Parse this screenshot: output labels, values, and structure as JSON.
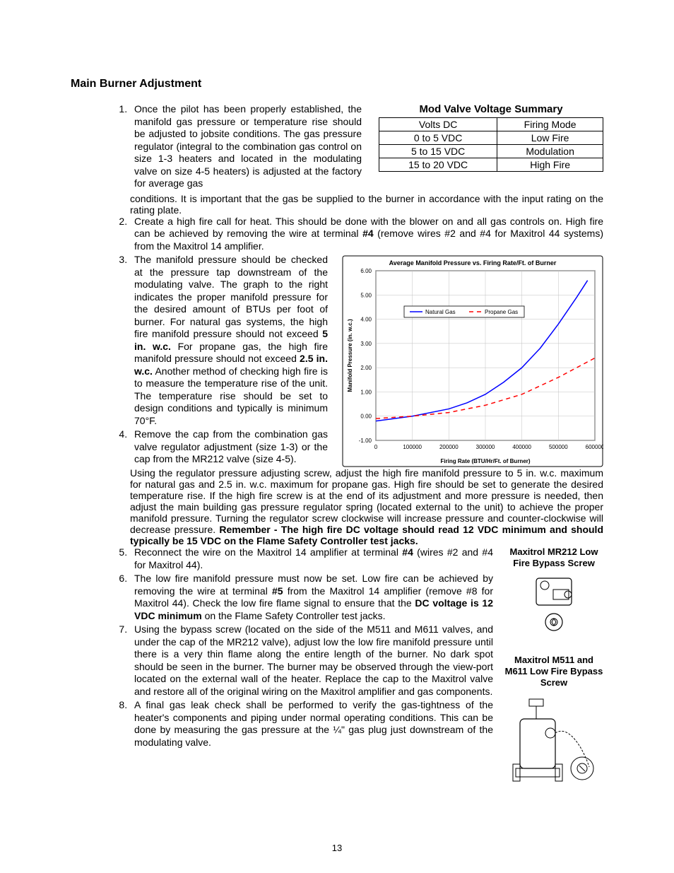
{
  "title": "Main Burner Adjustment",
  "voltage_summary": {
    "title": "Mod Valve Voltage Summary",
    "header": [
      "Volts DC",
      "Firing Mode"
    ],
    "rows": [
      [
        "0 to 5 VDC",
        "Low Fire"
      ],
      [
        "5 to 15 VDC",
        "Modulation"
      ],
      [
        "15 to 20 VDC",
        "High Fire"
      ]
    ]
  },
  "list": {
    "i1a": "Once the pilot has been properly established, the manifold gas pressure or temperature rise should be adjusted to jobsite conditions.  The gas pressure regulator (integral to the combination gas control on size 1-3 heaters and located in the modulating valve on size 4-5 heaters) is adjusted at the factory for average gas",
    "i1b": "conditions.  It is important that the gas be supplied to the burner in accordance with the input rating on the rating plate.",
    "i2a": "Create a high fire call for heat.  This should be done with the blower on and all gas controls on.  High fire can be achieved by removing the wire at terminal ",
    "i2b": " (remove wires #2 and #4 for Maxitrol 44 systems) from the Maxitrol 14 amplifier.",
    "i2_bold": "#4",
    "i3a": "The manifold pressure should be checked at the pressure tap downstream of the modulating valve.  The graph to the right indicates the proper manifold pressure for the desired amount of BTUs per foot of burner.  For natural gas systems, the high fire manifold pressure should not exceed ",
    "i3b1": "5 in. w.c.",
    "i3c": "  For propane gas, the high fire manifold pressure should not exceed ",
    "i3b2": "2.5 in. w.c.",
    "i3d": "  Another method of checking high fire is to measure the temperature rise of the unit.  The temperature rise should be set to design conditions and typically is minimum 70°F.",
    "i4a": "Remove the cap from the combination gas valve regulator adjustment (size 1-3) or the cap from the MR212 valve (size 4-5).",
    "i4b": "Using the regulator pressure adjusting screw, adjust the high fire manifold pressure to 5 in. w.c. maximum for natural gas and 2.5 in. w.c. maximum for propane gas.  High fire should be set to generate the desired temperature rise.  If the high fire screw is at the end of its adjustment and more pressure is needed, then adjust the main building gas pressure regulator spring (located external to the unit) to achieve the proper manifold pressure.  Turning the regulator screw clockwise will increase pressure and counter-clockwise will decrease pressure.  ",
    "i4bold": "Remember - The high fire DC voltage should read 12 VDC minimum and should typically be 15 VDC on the Flame Safety Controller test jacks.",
    "i5a": "Reconnect the wire on the Maxitrol 14 amplifier at terminal ",
    "i5b": "#4",
    "i5c": " (wires #2 and #4 for Maxitrol 44).",
    "i6a": "The low fire manifold pressure must now be set.  Low fire can be achieved by removing the wire at terminal ",
    "i6b": "#5",
    "i6c": " from the Maxitrol 14 amplifier (remove #8 for Maxitrol 44).  Check the low fire flame signal to ensure that the ",
    "i6d": "DC voltage is 12 VDC minimum",
    "i6e": " on the Flame Safety Controller test jacks.",
    "i7": "Using the bypass screw (located on the side of the M511 and M611 valves, and under the cap of the MR212 valve), adjust low the low fire manifold pressure until there is a very thin flame along the entire length of the burner.  No dark spot should be seen in the burner.  The burner may be observed through the view-port located on the external wall of the heater.  Replace the cap to the Maxitrol valve and restore all of the original wiring on the Maxitrol amplifier and gas components.",
    "i8": "A final gas leak check shall be performed to verify the gas-tightness of the heater's components and piping under normal operating conditions.  This can be done by measuring the gas pressure at the ¼\" gas plug just downstream of the modulating valve."
  },
  "right_labels": {
    "mr212": "Maxitrol MR212 Low Fire Bypass Screw",
    "m511": "Maxitrol M511 and M611 Low Fire Bypass Screw"
  },
  "chart": {
    "title": "Average Manifold Pressure vs. Firing Rate/Ft. of Burner",
    "ylabel": "Manifold Pressure (in. w.c.)",
    "xlabel": "Firing Rate (BTU/Hr/Ft. of Burner)",
    "legend": [
      "Natural Gas",
      "Propane Gas"
    ],
    "xlim": [
      0,
      600000
    ],
    "xtick_step": 100000,
    "ylim": [
      -1.0,
      6.0
    ],
    "ytick_step": 1.0,
    "background_color": "#ffffff",
    "grid_color": "#c0c0c0",
    "border_color": "#000000",
    "colors": {
      "natural_gas": "#0000ff",
      "propane_gas": "#ff0000"
    },
    "natural_gas_points": [
      [
        0,
        -0.2
      ],
      [
        100000,
        0.0
      ],
      [
        200000,
        0.3
      ],
      [
        250000,
        0.55
      ],
      [
        300000,
        0.9
      ],
      [
        350000,
        1.4
      ],
      [
        400000,
        2.0
      ],
      [
        450000,
        2.8
      ],
      [
        500000,
        3.8
      ],
      [
        550000,
        4.9
      ],
      [
        580000,
        5.6
      ]
    ],
    "propane_gas_points": [
      [
        0,
        -0.1
      ],
      [
        100000,
        0.0
      ],
      [
        200000,
        0.15
      ],
      [
        300000,
        0.45
      ],
      [
        400000,
        0.9
      ],
      [
        450000,
        1.25
      ],
      [
        500000,
        1.6
      ],
      [
        550000,
        2.0
      ],
      [
        600000,
        2.4
      ]
    ],
    "propane_dash": "6,5",
    "line_width": 1.5,
    "title_fontsize": 9,
    "tick_fontsize": 8,
    "label_fontsize": 8,
    "legend_fontsize": 8
  },
  "page_number": "13"
}
